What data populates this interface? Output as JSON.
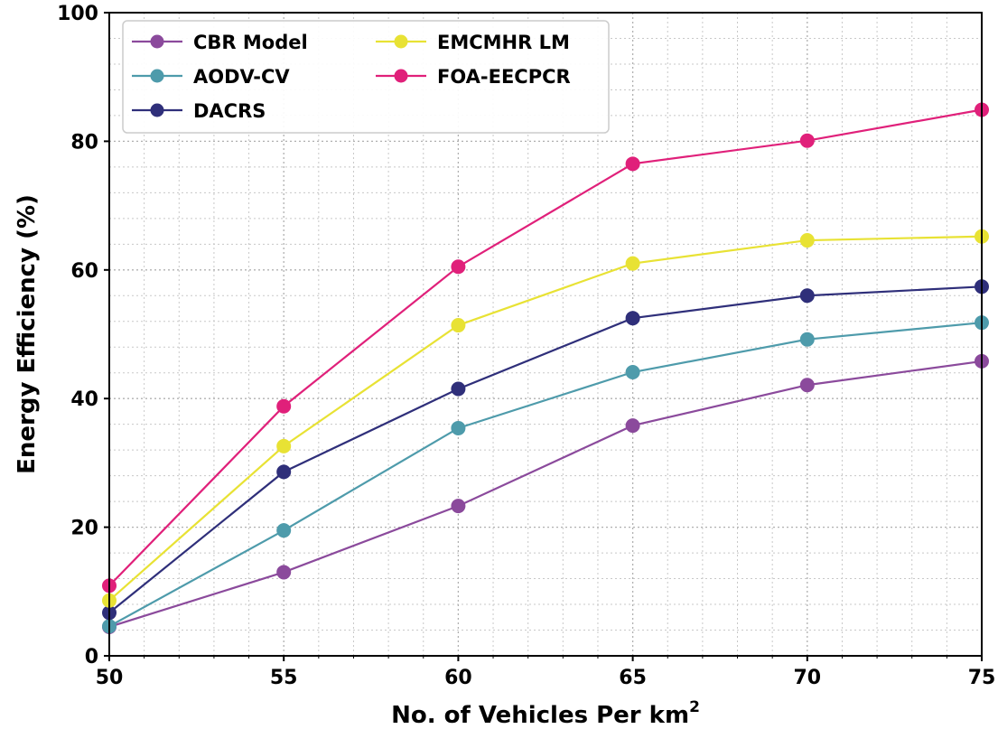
{
  "chart_data": {
    "type": "line",
    "title": "",
    "xlabel": "No. of Vehicles Per km",
    "xlabel_sup": "2",
    "ylabel": "Energy Efficiency (%)",
    "x": [
      50,
      55,
      60,
      65,
      70,
      75
    ],
    "xlim": [
      50,
      75
    ],
    "ylim": [
      0,
      100
    ],
    "xticks": [
      "50",
      "55",
      "60",
      "65",
      "70",
      "75"
    ],
    "yticks": [
      "0",
      "20",
      "40",
      "60",
      "80",
      "100"
    ],
    "grid": true,
    "legend_position": "top-left",
    "series": [
      {
        "name": "CBR Model",
        "color": "#8b4a9c",
        "values": [
          4.5,
          13.0,
          23.3,
          35.8,
          42.1,
          45.8
        ]
      },
      {
        "name": "AODV-CV",
        "color": "#4e9bab",
        "values": [
          4.6,
          19.5,
          35.4,
          44.1,
          49.2,
          51.8
        ]
      },
      {
        "name": "DACRS",
        "color": "#2f2f7a",
        "values": [
          6.7,
          28.6,
          41.5,
          52.5,
          56.0,
          57.4
        ]
      },
      {
        "name": "EMCMHR LM",
        "color": "#e8e234",
        "values": [
          8.6,
          32.6,
          51.4,
          61.0,
          64.6,
          65.2
        ]
      },
      {
        "name": "FOA-EECPCR",
        "color": "#e0207a",
        "values": [
          10.9,
          38.8,
          60.5,
          76.5,
          80.1,
          84.9
        ]
      }
    ]
  }
}
